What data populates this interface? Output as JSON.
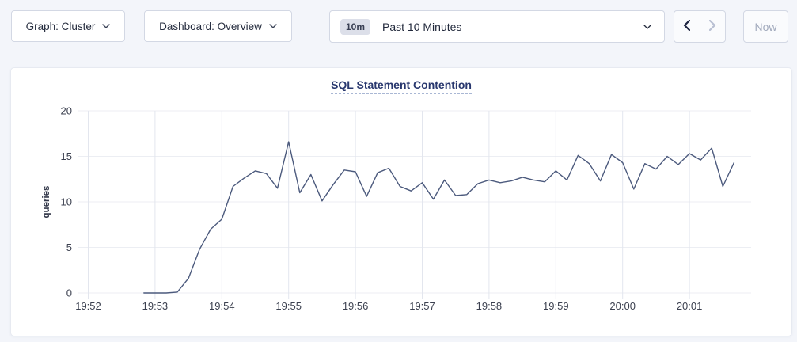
{
  "toolbar": {
    "graph_dropdown": {
      "label": "Graph: Cluster"
    },
    "dashboard_dropdown": {
      "label": "Dashboard: Overview"
    },
    "time_range": {
      "badge": "10m",
      "label": "Past 10 Minutes"
    },
    "now_button": {
      "label": "Now"
    }
  },
  "chart": {
    "title": "SQL Statement Contention"
  },
  "colors": {
    "page_bg": "#f3f5fa",
    "card_bg": "#ffffff",
    "card_border": "#e7eaf1",
    "title": "#28376e",
    "line": "#4c5a7d",
    "grid_h": "#eceef3",
    "grid_v": "#e3e6ee",
    "axis_text": "#3c4150",
    "ylabel_text": "#33384a",
    "control_border": "#d3d8e4",
    "control_text": "#242b3d",
    "disabled_text": "#a2aabd",
    "badge_bg": "#dcdfe9"
  },
  "chart_data": {
    "type": "line",
    "title": "SQL Statement Contention",
    "xlabel": "",
    "ylabel": "queries",
    "ylim": [
      0,
      20
    ],
    "y_ticks": [
      0,
      5,
      10,
      15,
      20
    ],
    "x_ticks": [
      "19:52",
      "19:53",
      "19:54",
      "19:55",
      "19:56",
      "19:57",
      "19:58",
      "19:59",
      "20:00",
      "20:01"
    ],
    "grid": true,
    "legend": "none",
    "series": [
      {
        "name": "queries",
        "color": "#4c5a7d",
        "times": [
          "19:52:50",
          "19:53:00",
          "19:53:10",
          "19:53:20",
          "19:53:30",
          "19:53:40",
          "19:53:50",
          "19:54:00",
          "19:54:10",
          "19:54:20",
          "19:54:30",
          "19:54:40",
          "19:54:50",
          "19:55:00",
          "19:55:10",
          "19:55:20",
          "19:55:30",
          "19:55:40",
          "19:55:50",
          "19:56:00",
          "19:56:10",
          "19:56:20",
          "19:56:30",
          "19:56:40",
          "19:56:50",
          "19:57:00",
          "19:57:10",
          "19:57:20",
          "19:57:30",
          "19:57:40",
          "19:57:50",
          "19:58:00",
          "19:58:10",
          "19:58:20",
          "19:58:30",
          "19:58:40",
          "19:58:50",
          "19:59:00",
          "19:59:10",
          "19:59:20",
          "19:59:30",
          "19:59:40",
          "19:59:50",
          "20:00:00",
          "20:00:10",
          "20:00:20",
          "20:00:30",
          "20:00:40",
          "20:00:50",
          "20:01:00",
          "20:01:10",
          "20:01:20",
          "20:01:30",
          "20:01:40"
        ],
        "values": [
          0,
          0,
          0,
          0.1,
          1.6,
          4.8,
          7.0,
          8.1,
          11.7,
          12.6,
          13.4,
          13.1,
          11.5,
          16.6,
          11.0,
          13.0,
          10.1,
          11.9,
          13.5,
          13.3,
          10.6,
          13.2,
          13.7,
          11.7,
          11.2,
          12.1,
          10.3,
          12.4,
          10.7,
          10.8,
          12.0,
          12.4,
          12.1,
          12.3,
          12.7,
          12.4,
          12.2,
          13.4,
          12.4,
          15.1,
          14.2,
          12.3,
          15.2,
          14.3,
          11.4,
          14.2,
          13.6,
          15.0,
          14.1,
          15.3,
          14.6,
          15.9,
          11.7,
          14.3
        ]
      }
    ]
  }
}
